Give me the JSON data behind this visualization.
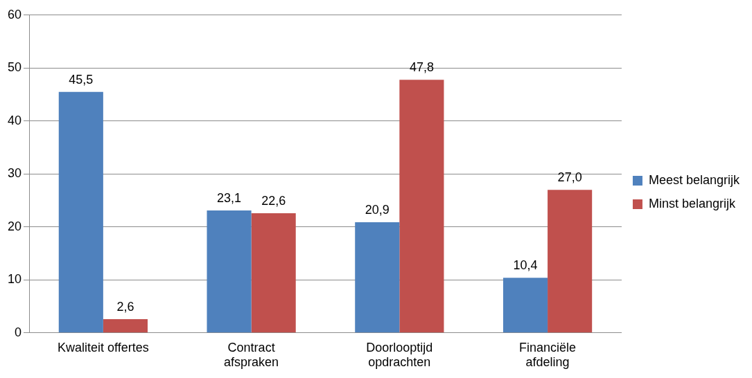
{
  "chart_data": {
    "type": "bar",
    "categories": [
      "Kwaliteit offertes",
      "Contract\nafspraken",
      "Doorlooptijd\nopdrachten",
      "Financiële\nafdeling"
    ],
    "series": [
      {
        "name": "Meest belangrijk",
        "color": "#4f81bd",
        "values": [
          45.5,
          23.1,
          20.9,
          10.4
        ],
        "value_labels": [
          "45,5",
          "23,1",
          "20,9",
          "10,4"
        ]
      },
      {
        "name": "Minst belangrijk",
        "color": "#c0504d",
        "values": [
          2.6,
          22.6,
          47.8,
          27.0
        ],
        "value_labels": [
          "2,6",
          "22,6",
          "47,8",
          "27,0"
        ]
      }
    ],
    "ylim": [
      0,
      60
    ],
    "yticks": [
      0,
      10,
      20,
      30,
      40,
      50,
      60
    ],
    "grid": "y",
    "legend": "right"
  }
}
